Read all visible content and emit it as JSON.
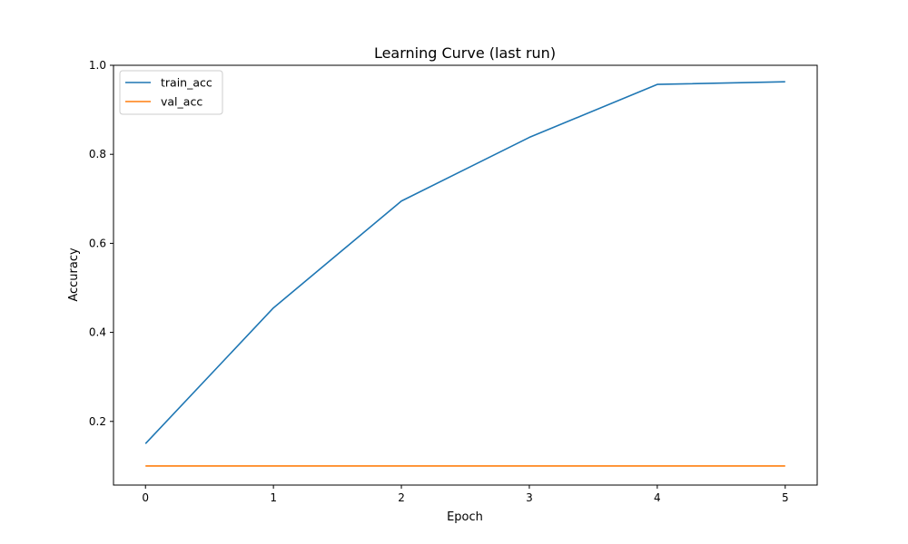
{
  "chart_data": {
    "type": "line",
    "title": "Learning Curve (last run)",
    "xlabel": "Epoch",
    "ylabel": "Accuracy",
    "x": [
      0,
      1,
      2,
      3,
      4,
      5
    ],
    "xlim": [
      -0.25,
      5.25
    ],
    "ylim": [
      0.057,
      1.0
    ],
    "x_ticks": [
      "0",
      "1",
      "2",
      "3",
      "4",
      "5"
    ],
    "y_ticks": [
      "0.2",
      "0.4",
      "0.6",
      "0.8",
      "1.0"
    ],
    "grid": false,
    "legend_position": "upper-left",
    "series": [
      {
        "name": "train_acc",
        "color": "#1f77b4",
        "values": [
          0.15,
          0.455,
          0.695,
          0.838,
          0.957,
          0.963
        ]
      },
      {
        "name": "val_acc",
        "color": "#ff7f0e",
        "values": [
          0.1,
          0.1,
          0.1,
          0.1,
          0.1,
          0.1
        ]
      }
    ]
  }
}
